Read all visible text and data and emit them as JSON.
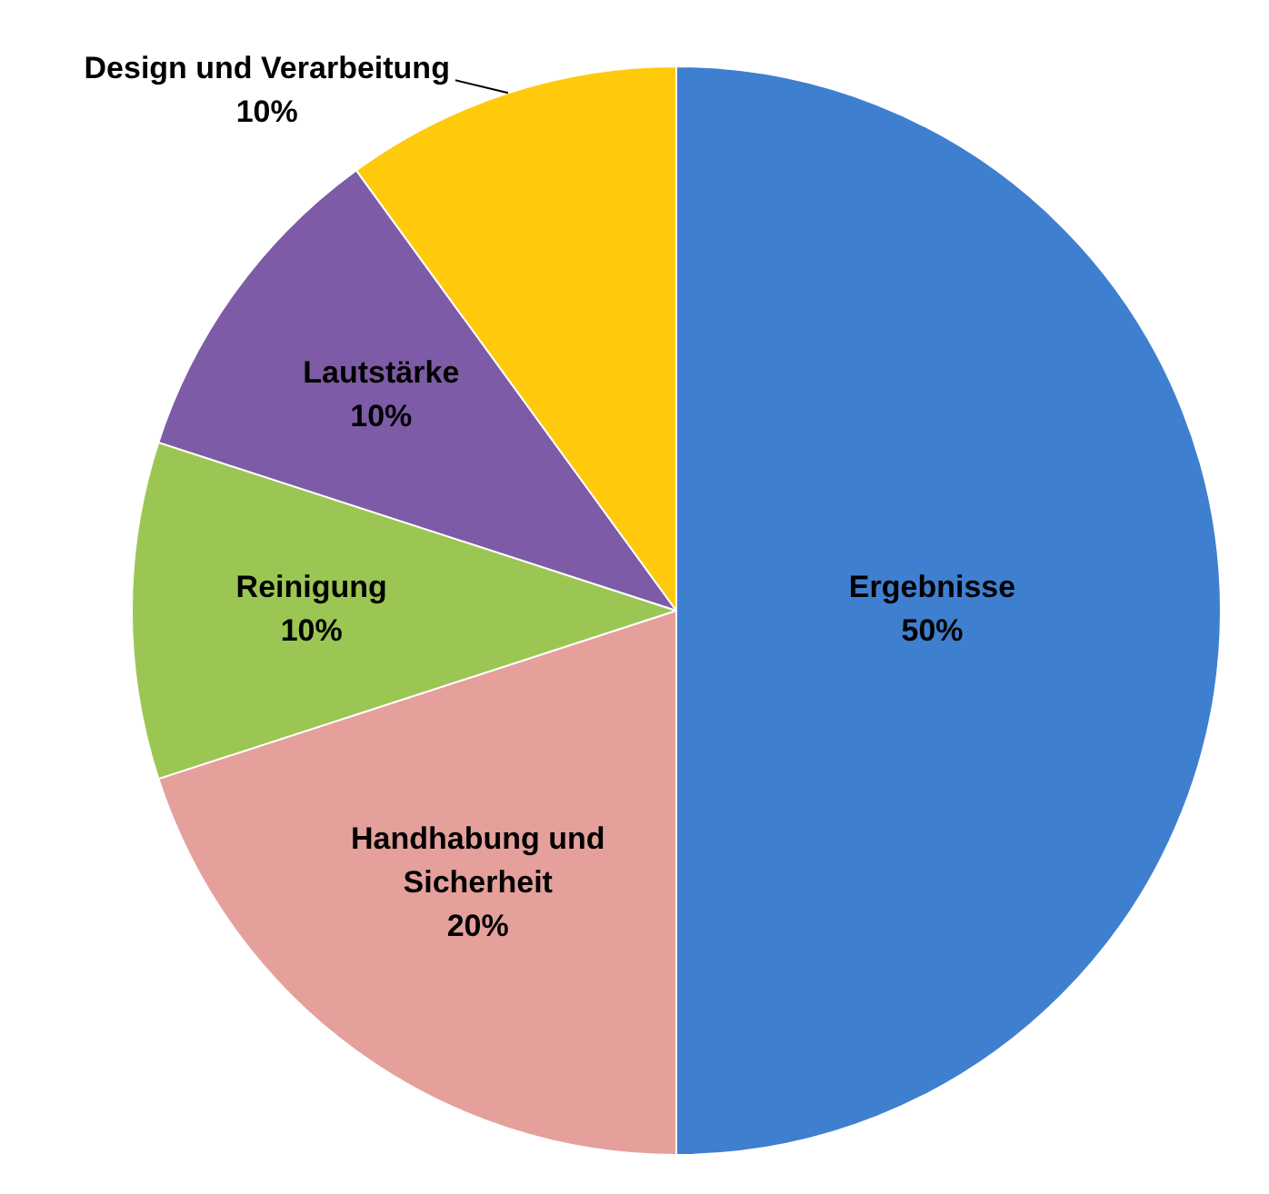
{
  "chart_data": {
    "type": "pie",
    "categories": [
      "Ergebnisse",
      "Handhabung und Sicherheit",
      "Reinigung",
      "Lautstärke",
      "Design und Verarbeitung"
    ],
    "values": [
      50,
      20,
      10,
      10,
      10
    ],
    "value_labels": [
      "50%",
      "20%",
      "10%",
      "10%",
      "10%"
    ],
    "colors": [
      "#3f7fcf",
      "#e5a09c",
      "#9cc653",
      "#7d5ba6",
      "#ffc90c"
    ]
  }
}
